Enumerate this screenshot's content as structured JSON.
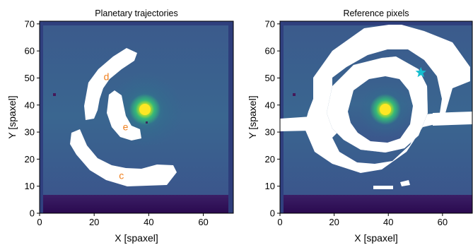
{
  "chart_data": [
    {
      "type": "heatmap",
      "title": "Planetary trajectories",
      "xlabel": "X [spaxel]",
      "ylabel": "Y [spaxel]",
      "xlim": [
        0,
        71
      ],
      "ylim": [
        0,
        71
      ],
      "xticks": [
        "0",
        "20",
        "40",
        "60"
      ],
      "yticks": [
        "0",
        "10",
        "20",
        "30",
        "40",
        "50",
        "60",
        "70"
      ],
      "colormap": "viridis",
      "star_position": [
        39,
        39
      ],
      "annotations": [
        {
          "label": "d",
          "x": 24.5,
          "y": 50.5
        },
        {
          "label": "e",
          "x": 31.5,
          "y": 32
        },
        {
          "label": "c",
          "x": 30,
          "y": 14
        }
      ],
      "masked_regions": [
        "d",
        "e",
        "c"
      ],
      "mask_color": "#ffffff"
    },
    {
      "type": "heatmap",
      "title": "Reference pixels",
      "xlabel": "X [spaxel]",
      "ylabel": "Y [spaxel]",
      "xlim": [
        0,
        71
      ],
      "ylim": [
        0,
        71
      ],
      "xticks": [
        "0",
        "20",
        "40",
        "60"
      ],
      "yticks": [
        "0",
        "10",
        "20",
        "30",
        "40",
        "50",
        "60",
        "70"
      ],
      "colormap": "viridis",
      "star_position": [
        39,
        39
      ],
      "marker": {
        "shape": "star",
        "x": 52,
        "y": 52,
        "color": "#17becf"
      },
      "mask_color": "#ffffff"
    }
  ]
}
